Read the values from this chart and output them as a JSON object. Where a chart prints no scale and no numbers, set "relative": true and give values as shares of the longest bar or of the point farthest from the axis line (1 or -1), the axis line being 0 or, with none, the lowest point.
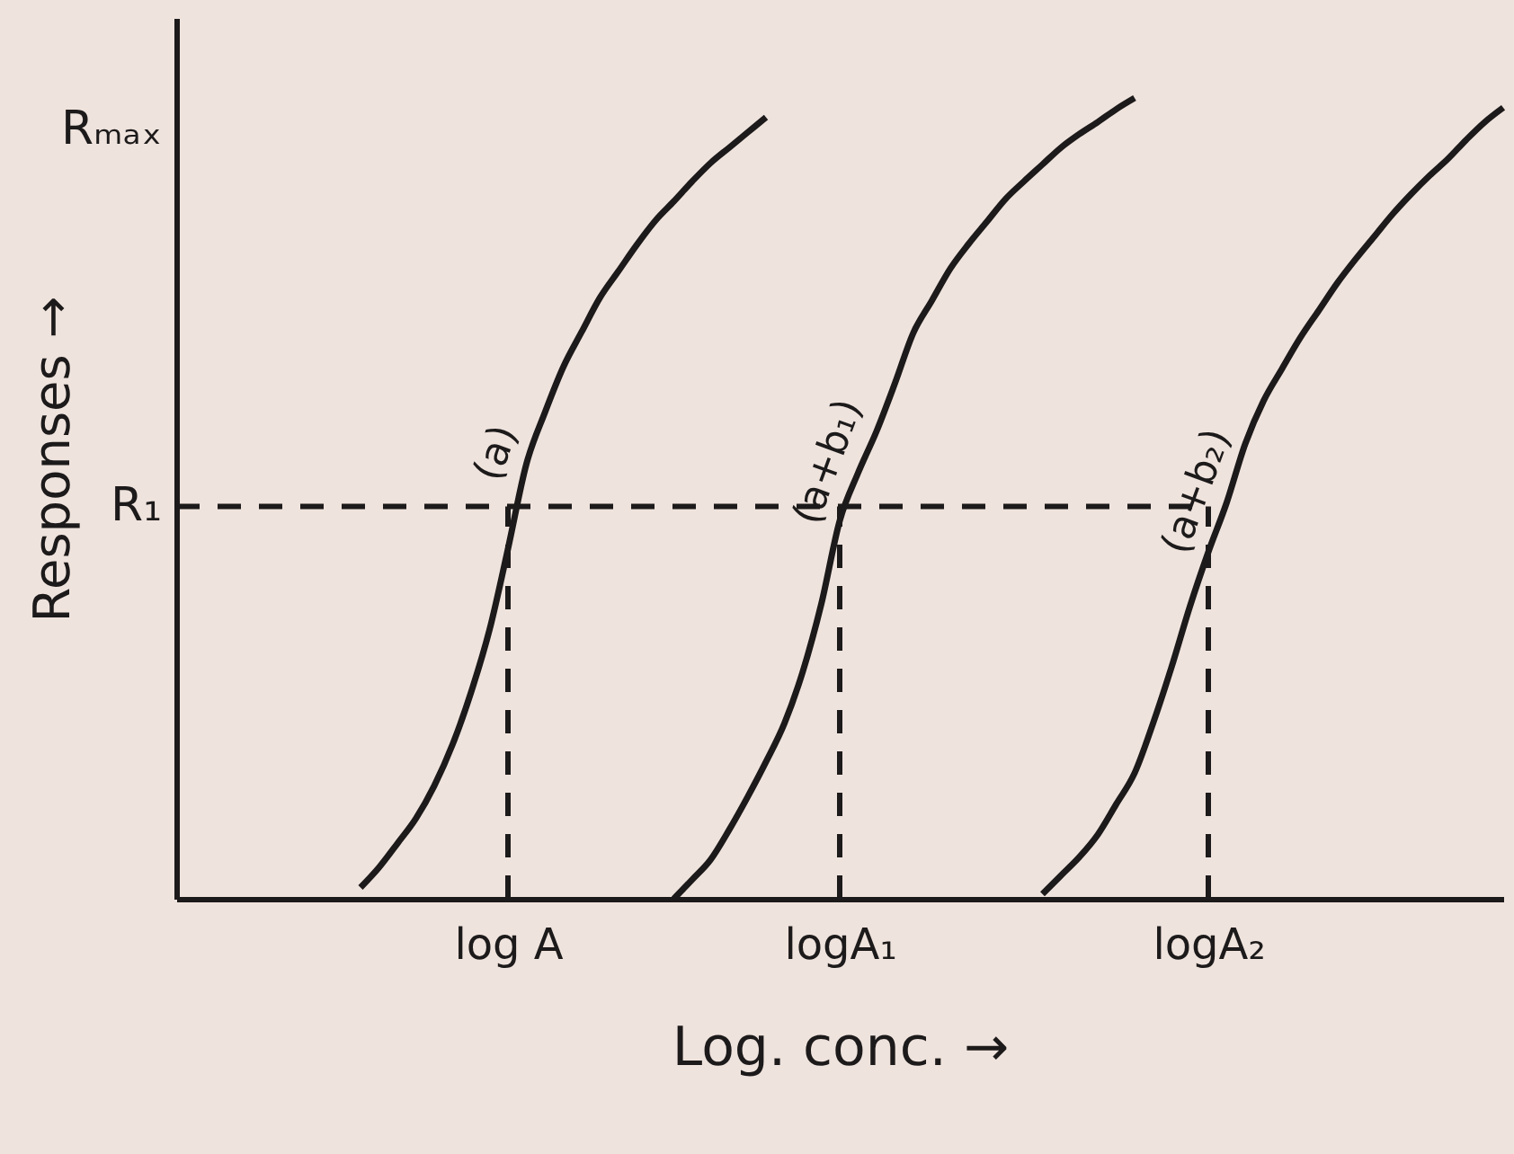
{
  "chart_data": {
    "type": "line",
    "relative": true,
    "line_style": "solid",
    "grid": false,
    "xlabel": "Log. conc. →",
    "ylabel": "Responses →",
    "categories": [
      null,
      null,
      null,
      null,
      null,
      null,
      null,
      null,
      null,
      null,
      null,
      null,
      null,
      null,
      null,
      null,
      null,
      null,
      "log A",
      null,
      null,
      null,
      null,
      null,
      null,
      null,
      null,
      null,
      null,
      null,
      null,
      null,
      null,
      null,
      null,
      null,
      "logA₁",
      null,
      null,
      null,
      null,
      null,
      null,
      null,
      null,
      null,
      null,
      null,
      null,
      null,
      null,
      null,
      null,
      null,
      null,
      null,
      "logA₂",
      null,
      null,
      null,
      null,
      null,
      null,
      null,
      null,
      null,
      null,
      null,
      null,
      null,
      null,
      null,
      null
    ],
    "annotations": [
      "Rₘₐₓ"
    ],
    "ref_lines": [
      {
        "axis": "y",
        "value": 0.49,
        "label": "R₁",
        "line_style": "dashed",
        "color": "#1c1a1a"
      },
      {
        "axis": "x",
        "value": "log A",
        "line_style": "dashed",
        "color": "#1c1a1a"
      },
      {
        "axis": "x",
        "value": "logA₁",
        "line_style": "dashed",
        "color": "#1c1a1a"
      },
      {
        "axis": "x",
        "value": "logA₂",
        "line_style": "dashed",
        "color": "#1c1a1a"
      }
    ],
    "series": [
      {
        "name": "(a)",
        "color": "#1c1a1a",
        "values": [
          null,
          null,
          null,
          null,
          null,
          null,
          null,
          null,
          null,
          null,
          0.014,
          0.039,
          0.069,
          0.1,
          0.141,
          0.193,
          0.258,
          0.336,
          0.437,
          0.543,
          0.607,
          0.664,
          0.708,
          0.751,
          0.784,
          0.817,
          0.847,
          0.871,
          0.896,
          0.919,
          0.938,
          0.957,
          0.976,
          null,
          null,
          null,
          null,
          null,
          null,
          null,
          null,
          null,
          null,
          null,
          null,
          null,
          null,
          null,
          null,
          null,
          null,
          null,
          null,
          null,
          null,
          null,
          null,
          null,
          null,
          null,
          null,
          null,
          null,
          null,
          null,
          null,
          null,
          null,
          null,
          null,
          null,
          null,
          null
        ]
      },
      {
        "name": "(a+b₁)",
        "color": "#1c1a1a",
        "values": [
          null,
          null,
          null,
          null,
          null,
          null,
          null,
          null,
          null,
          null,
          null,
          null,
          null,
          null,
          null,
          null,
          null,
          null,
          null,
          null,
          null,
          null,
          null,
          null,
          null,
          null,
          null,
          0,
          0.024,
          0.049,
          0.086,
          0.127,
          0.171,
          0.219,
          0.284,
          0.368,
          0.472,
          0.532,
          0.584,
          0.644,
          0.707,
          0.747,
          0.787,
          0.818,
          0.846,
          0.874,
          0.896,
          0.917,
          0.938,
          0.955,
          0.97,
          0.986,
          1.0,
          null,
          null,
          null,
          null,
          null,
          null,
          null,
          null,
          null,
          null,
          null,
          null,
          null,
          null,
          null,
          null,
          null,
          null,
          null,
          null
        ]
      },
      {
        "name": "(a+b₂)",
        "color": "#1c1a1a",
        "values": [
          null,
          null,
          null,
          null,
          null,
          null,
          null,
          null,
          null,
          null,
          null,
          null,
          null,
          null,
          null,
          null,
          null,
          null,
          null,
          null,
          null,
          null,
          null,
          null,
          null,
          null,
          null,
          null,
          null,
          null,
          null,
          null,
          null,
          null,
          null,
          null,
          null,
          null,
          null,
          null,
          null,
          null,
          null,
          null,
          null,
          null,
          null,
          0.006,
          0.029,
          0.052,
          0.08,
          0.118,
          0.157,
          0.219,
          0.289,
          0.365,
          0.433,
          0.495,
          0.568,
          0.622,
          0.662,
          0.701,
          0.735,
          0.769,
          0.799,
          0.827,
          0.855,
          0.88,
          0.903,
          0.924,
          0.948,
          0.97,
          0.988
        ]
      }
    ]
  }
}
